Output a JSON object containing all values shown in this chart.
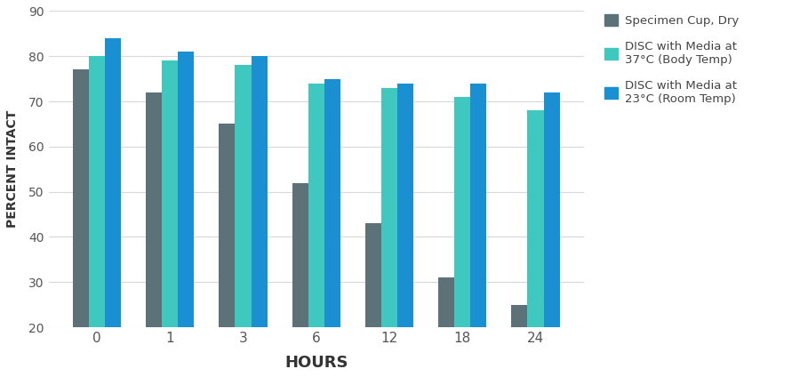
{
  "categories": [
    "0",
    "1",
    "3",
    "6",
    "12",
    "18",
    "24"
  ],
  "series": {
    "Specimen Cup, Dry": [
      77,
      72,
      65,
      52,
      43,
      31,
      25
    ],
    "DISC with Media at\n37°C (Body Temp)": [
      80,
      79,
      78,
      74,
      73,
      71,
      68
    ],
    "DISC with Media at\n23°C (Room Temp)": [
      84,
      81,
      80,
      75,
      74,
      74,
      72
    ]
  },
  "colors": {
    "Specimen Cup, Dry": "#5c7178",
    "DISC with Media at\n37°C (Body Temp)": "#3ec8bf",
    "DISC with Media at\n23°C (Room Temp)": "#1a8fd1"
  },
  "ylim": [
    20,
    90
  ],
  "yticks": [
    20,
    30,
    40,
    50,
    60,
    70,
    80,
    90
  ],
  "xlabel": "HOURS",
  "ylabel": "PERCENT INTACT",
  "bar_width": 0.22,
  "background_color": "#ffffff",
  "grid_color": "#d8d8d8",
  "legend_labels": [
    "Specimen Cup, Dry",
    "DISC with Media at\n37°C (Body Temp)",
    "DISC with Media at\n23°C (Room Temp)"
  ]
}
